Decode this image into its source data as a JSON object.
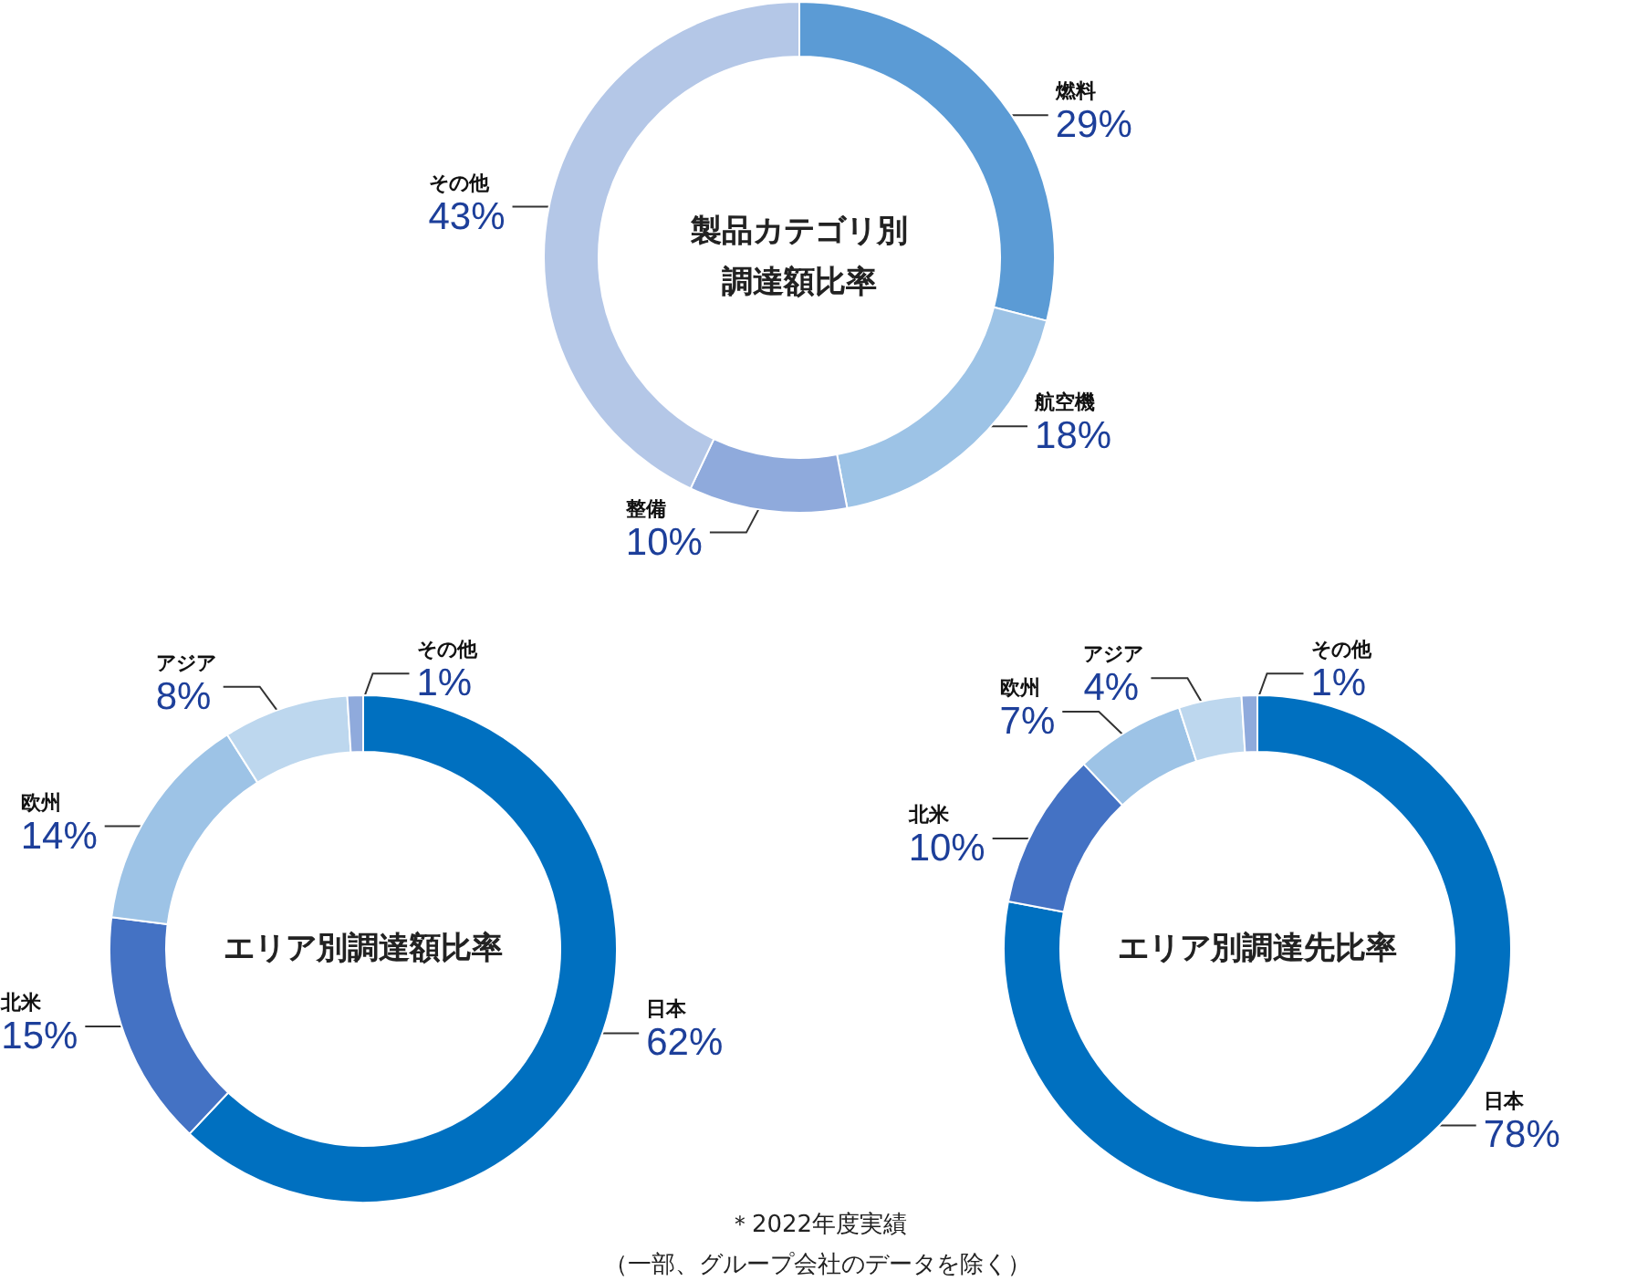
{
  "chart_data": [
    {
      "type": "donut",
      "title": "製品カテゴリ別調達額比率",
      "categories": [
        "燃料",
        "航空機",
        "整備",
        "その他"
      ],
      "values": [
        29,
        18,
        10,
        43
      ],
      "colors": [
        "#5b9bd5",
        "#9dc3e6",
        "#8faadc",
        "#b4c7e7"
      ],
      "value_labels": [
        "29%",
        "18%",
        "10%",
        "43%"
      ]
    },
    {
      "type": "donut",
      "title": "エリア別調達額比率",
      "categories": [
        "日本",
        "北米",
        "欧州",
        "アジア",
        "その他"
      ],
      "values": [
        62,
        15,
        14,
        8,
        1
      ],
      "colors": [
        "#0070c0",
        "#4472c4",
        "#9dc3e6",
        "#bdd7ee",
        "#8faadc"
      ],
      "value_labels": [
        "62%",
        "15%",
        "14%",
        "8%",
        "1%"
      ]
    },
    {
      "type": "donut",
      "title": "エリア別調達先比率",
      "categories": [
        "日本",
        "北米",
        "欧州",
        "アジア",
        "その他"
      ],
      "values": [
        78,
        10,
        7,
        4,
        1
      ],
      "colors": [
        "#0070c0",
        "#4472c4",
        "#9dc3e6",
        "#bdd7ee",
        "#8faadc"
      ],
      "value_labels": [
        "78%",
        "10%",
        "7%",
        "4%",
        "1%"
      ],
      "annotations": [
        "＊2022年度実績",
        "（一部、グループ会社のデータを除く）"
      ]
    }
  ]
}
